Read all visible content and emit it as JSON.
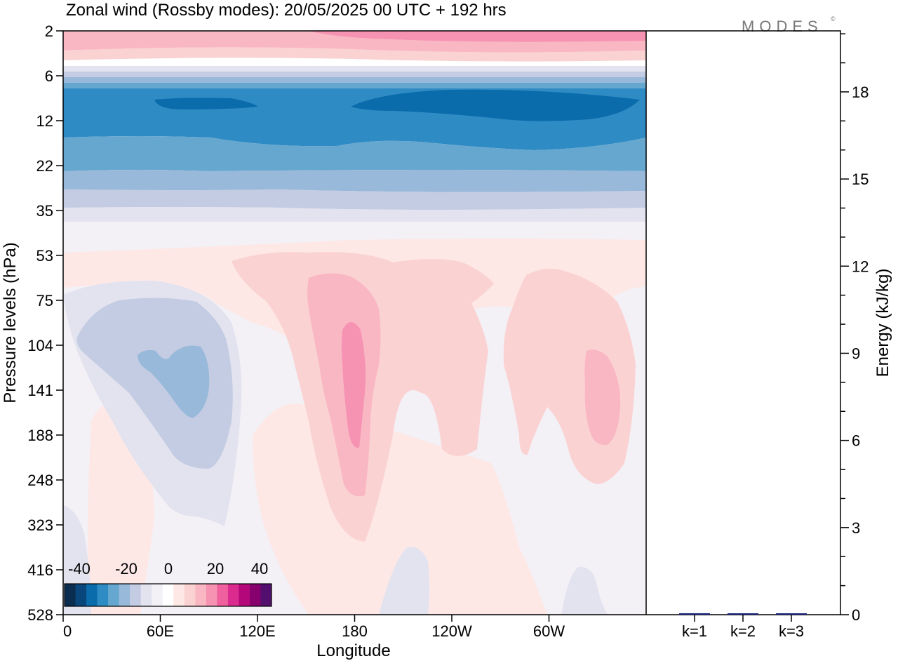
{
  "title": "Zonal wind (Rossby modes):  20/05/2025  00 UTC  + 192 hrs",
  "logo": "MODES",
  "logo_mark": "©",
  "chart_data": [
    {
      "type": "heatmap",
      "title": "Zonal wind (Rossby modes):  20/05/2025  00 UTC  + 192 hrs",
      "xlabel": "Longitude",
      "ylabel": "Pressure levels (hPa)",
      "x_ticks": [
        "0",
        "60E",
        "120E",
        "180",
        "120W",
        "60W"
      ],
      "y_ticks": [
        "2",
        "6",
        "12",
        "22",
        "35",
        "53",
        "75",
        "104",
        "141",
        "188",
        "248",
        "323",
        "416",
        "528"
      ],
      "y_scale": "log",
      "colorbar": {
        "tick_labels": [
          "-40",
          "-20",
          "0",
          "20",
          "40"
        ],
        "colors": [
          "#0b2d4f",
          "#08467b",
          "#0b6cab",
          "#2f8bc4",
          "#66a7cf",
          "#98b9d9",
          "#c4cce3",
          "#e3e3ef",
          "#f3f0f6",
          "#ffffff",
          "#fde8e6",
          "#fbd2d2",
          "#f9b7c3",
          "#f693b3",
          "#f0609f",
          "#dc2b8e",
          "#b4087a",
          "#86006e",
          "#530f6e"
        ]
      },
      "cells": [
        {
          "wind": 20,
          "region": "top band at 2 hPa"
        },
        {
          "wind": 10,
          "region": "upper band 2-6 hPa"
        },
        {
          "wind": -10,
          "region": "band near 6 hPa"
        },
        {
          "wind": -25,
          "region": "core 6-22 hPa"
        },
        {
          "wind": -30,
          "region": "strongest easterlies near 10 hPa"
        },
        {
          "wind": -15,
          "region": "band 22-35 hPa"
        },
        {
          "wind": -5,
          "region": "band near 40 hPa"
        },
        {
          "wind": 5,
          "region": "band near 60 hPa"
        },
        {
          "wind": -10,
          "region": "minimum near 60E, 140 hPa"
        },
        {
          "wind": 20,
          "region": "maximum near 180, 140 hPa"
        },
        {
          "wind": 15,
          "region": "maximum near 30W, 150 hPa"
        },
        {
          "wind": 0,
          "region": "lower troposphere 300-528 hPa"
        }
      ]
    },
    {
      "type": "bar",
      "categories": [
        "k=1",
        "k=2",
        "k=3"
      ],
      "values": [
        0.05,
        0.02,
        0.02
      ],
      "ylabel": "Energy (kJ/kg)",
      "ylim": [
        0,
        20
      ],
      "y_ticks": [
        "0",
        "3",
        "6",
        "9",
        "12",
        "15",
        "18"
      ],
      "bar_color": "#1a237e"
    }
  ]
}
